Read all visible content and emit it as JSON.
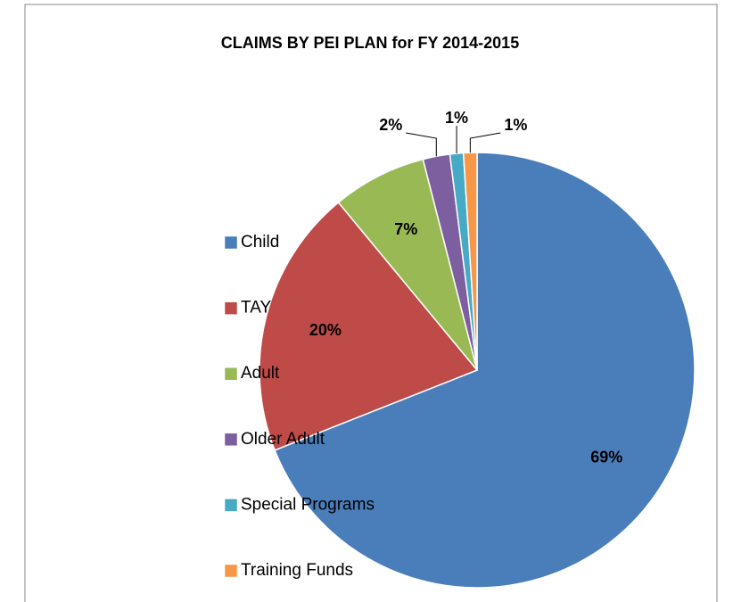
{
  "chart_data": {
    "type": "pie",
    "title": "CLAIMS BY PEI PLAN for FY 2014-2015",
    "categories": [
      "Child",
      "TAY",
      "Adult",
      "Older Adult",
      "Special Programs",
      "Training Funds"
    ],
    "values": [
      69,
      20,
      7,
      2,
      1,
      1
    ],
    "value_labels": [
      "69%",
      "20%",
      "7%",
      "2%",
      "1%",
      "1%"
    ],
    "colors": [
      "#4a7ebb",
      "#be4b48",
      "#98b954",
      "#7d5fa0",
      "#46aac5",
      "#f79646"
    ],
    "legend": "left"
  }
}
